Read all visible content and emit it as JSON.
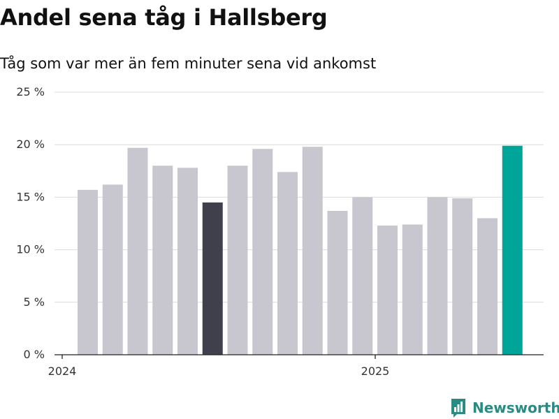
{
  "header": {
    "title": "Andel sena tåg i Hallsberg",
    "subtitle": "Tåg som var mer än fem minuter sena vid ankomst"
  },
  "brand": {
    "name": "Newsworthy",
    "icon": "newsworthy-logo-icon",
    "color": "#2a8b83"
  },
  "colors": {
    "bar_default": "#c8c7cf",
    "bar_highlight_dark": "#403f4c",
    "bar_highlight_current": "#00a599",
    "grid": "#dcdcdc",
    "axis": "#222222"
  },
  "chart_data": {
    "type": "bar",
    "title": "Andel sena tåg i Hallsberg",
    "subtitle": "Tåg som var mer än fem minuter sena vid ankomst",
    "xlabel": "",
    "ylabel": "",
    "ylim": [
      0,
      25
    ],
    "yticks": [
      0,
      5,
      10,
      15,
      20,
      25
    ],
    "ytick_labels": [
      "0 %",
      "5 %",
      "10 %",
      "15 %",
      "20 %",
      "25 %"
    ],
    "xtick_labels": [
      {
        "label": "2024",
        "index": 0
      },
      {
        "label": "2025",
        "index": 12
      }
    ],
    "grid": true,
    "values": [
      15.7,
      16.2,
      19.7,
      18.0,
      17.8,
      14.5,
      18.0,
      19.6,
      17.4,
      19.8,
      13.7,
      15.0,
      12.3,
      12.4,
      15.0,
      14.9,
      13.0,
      19.9
    ],
    "highlights": {
      "5": "dark",
      "17": "current"
    }
  }
}
